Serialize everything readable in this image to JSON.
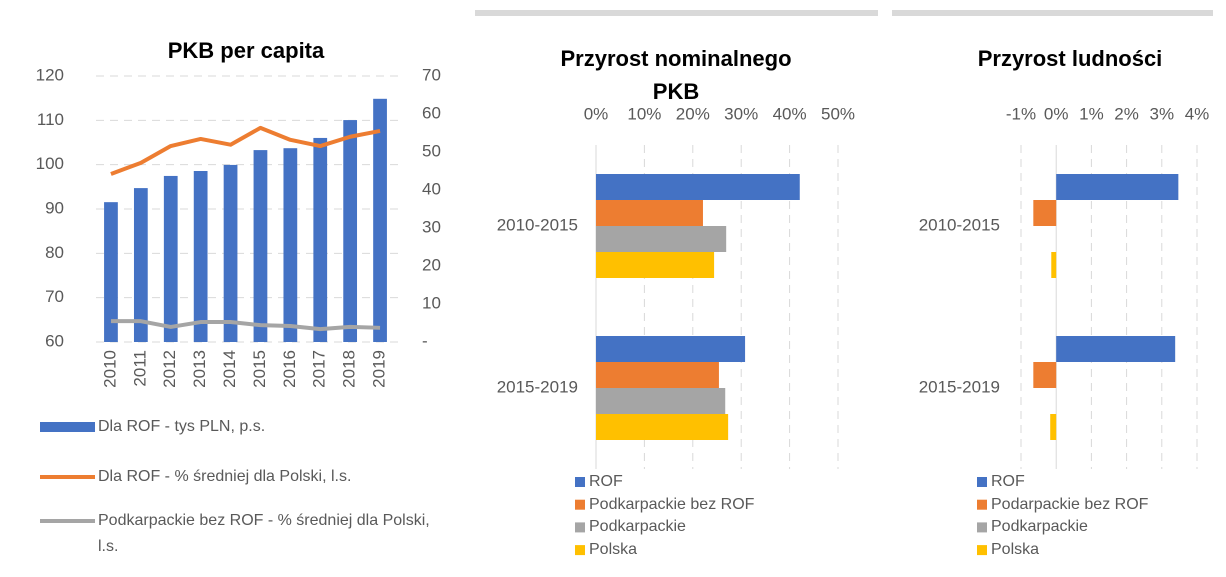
{
  "chart_data": [
    {
      "type": "combo",
      "title": "PKB per capita",
      "categories": [
        "2010",
        "2011",
        "2012",
        "2013",
        "2014",
        "2015",
        "2016",
        "2017",
        "2018",
        "2019"
      ],
      "series": [
        {
          "name": "Dla ROF - tys PLN, p.s.",
          "type": "bar",
          "axis": "y2",
          "color": "#4472c4",
          "values": [
            36.8,
            40.5,
            43.7,
            45,
            46.6,
            50.5,
            51,
            53.7,
            58.4,
            64
          ]
        },
        {
          "name": "Dla ROF - % średniej dla Polski, l.s.",
          "type": "line",
          "color": "#ed7d31",
          "values": [
            97.9,
            100.4,
            104.2,
            105.8,
            104.5,
            108.3,
            105.6,
            104.2,
            106.3,
            107.6
          ]
        },
        {
          "name": "Podkarpackie bez ROF - % średniej dla Polski, l.s.",
          "type": "line",
          "color": "#a5a5a5",
          "values": [
            64.7,
            64.7,
            63.4,
            64.5,
            64.5,
            63.8,
            63.6,
            62.9,
            63.4,
            63.2
          ]
        }
      ],
      "ylim": [
        60,
        120
      ],
      "yticks": [
        60,
        70,
        80,
        90,
        100,
        110,
        120
      ],
      "y2lim": [
        0,
        70
      ],
      "y2ticks": [
        {
          "value": 0,
          "label": "-"
        },
        10,
        20,
        30,
        40,
        50,
        60,
        70
      ],
      "grid": true,
      "legend": "bottom"
    },
    {
      "type": "hbar",
      "title": "Przyrost nominalnego PKB",
      "categories": [
        "2010-2015",
        "2015-2019"
      ],
      "series": [
        {
          "name": "ROF",
          "color": "#4472c4",
          "values": [
            42.1,
            30.8
          ]
        },
        {
          "name": "Podkarpackie bez ROF",
          "color": "#ed7d31",
          "values": [
            22.1,
            25.4
          ]
        },
        {
          "name": "Podkarpackie",
          "color": "#a5a5a5",
          "values": [
            26.9,
            26.7
          ]
        },
        {
          "name": "Polska",
          "color": "#ffc000",
          "values": [
            24.4,
            27.3
          ]
        }
      ],
      "xlim": [
        0,
        50
      ],
      "xticks": [
        {
          "value": 0,
          "label": "0%"
        },
        {
          "value": 10,
          "label": "10%"
        },
        {
          "value": 20,
          "label": "20%"
        },
        {
          "value": 30,
          "label": "30%"
        },
        {
          "value": 40,
          "label": "40%"
        },
        {
          "value": 50,
          "label": "50%"
        }
      ],
      "grid": true,
      "legend": "bottom"
    },
    {
      "type": "hbar",
      "title": "Przyrost ludności",
      "categories": [
        "2010-2015",
        "2015-2019"
      ],
      "series": [
        {
          "name": "ROF",
          "color": "#4472c4",
          "values": [
            3.47,
            3.38
          ]
        },
        {
          "name": "Podarpackie bez ROF",
          "color": "#ed7d31",
          "values": [
            -0.65,
            -0.65
          ]
        },
        {
          "name": "Podkarpackie",
          "color": "#a5a5a5",
          "values": [
            0,
            0
          ]
        },
        {
          "name": "Polska",
          "color": "#ffc000",
          "values": [
            -0.14,
            -0.17
          ]
        }
      ],
      "xlim": [
        -1,
        4
      ],
      "xticks": [
        {
          "value": -1,
          "label": "-1%"
        },
        {
          "value": 0,
          "label": "0%"
        },
        {
          "value": 1,
          "label": "1%"
        },
        {
          "value": 2,
          "label": "2%"
        },
        {
          "value": 3,
          "label": "3%"
        },
        {
          "value": 4,
          "label": "4%"
        }
      ],
      "grid": true,
      "legend": "bottom"
    }
  ]
}
